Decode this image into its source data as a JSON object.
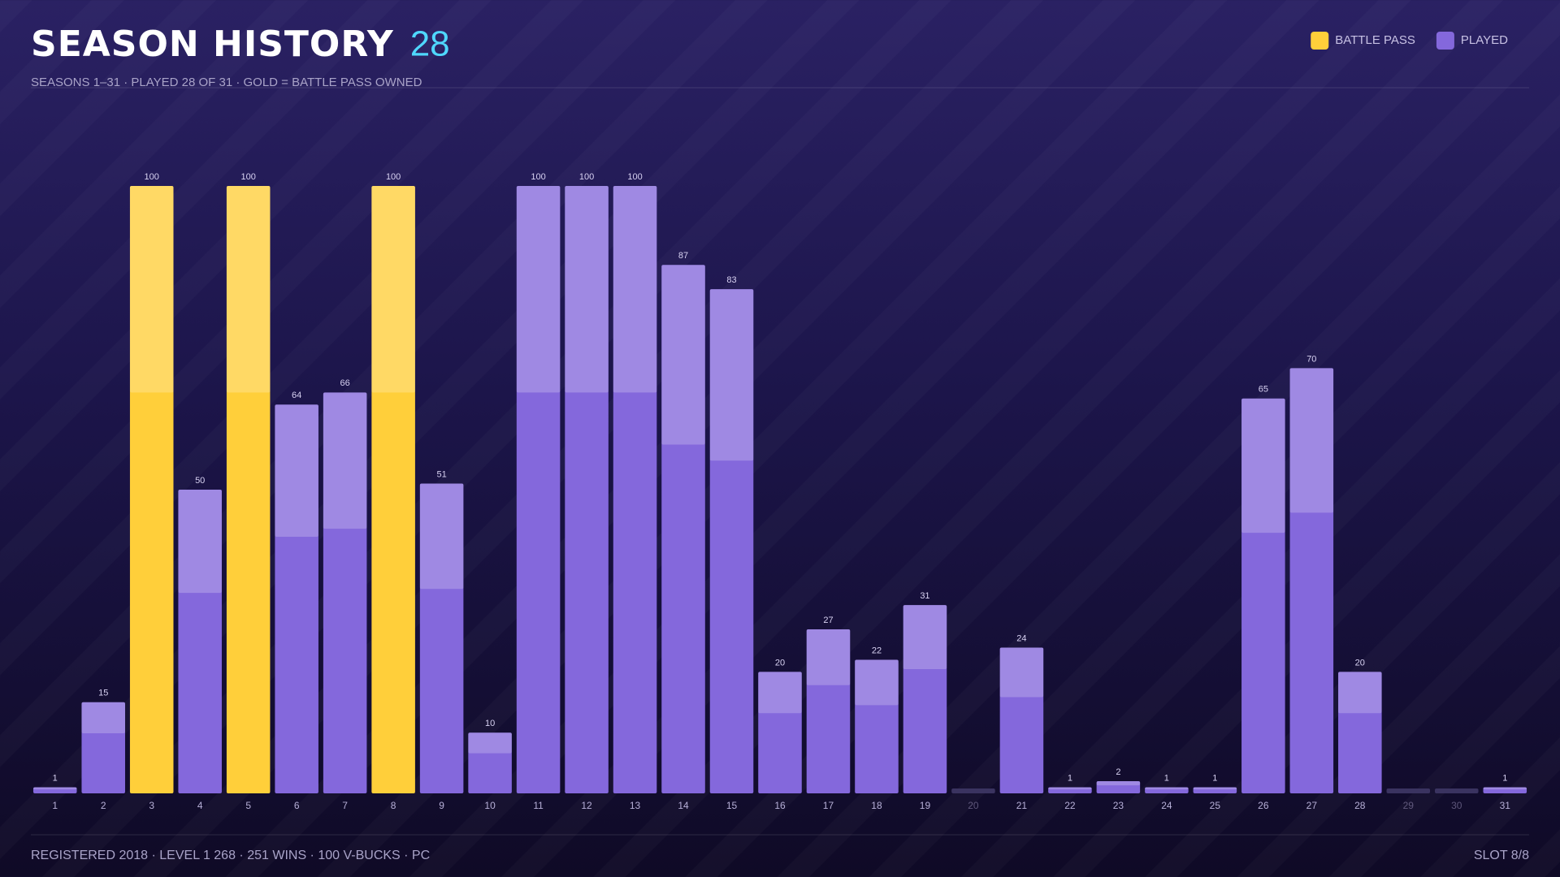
{
  "chart_data": {
    "type": "bar",
    "title": "SEASON HISTORY",
    "count": 28,
    "subtitle": "SEASONS 1–31 · PLAYED 28 OF 31 · GOLD = BATTLE PASS OWNED",
    "categories": [
      "1",
      "2",
      "3",
      "4",
      "5",
      "6",
      "7",
      "8",
      "9",
      "10",
      "11",
      "12",
      "13",
      "14",
      "15",
      "16",
      "17",
      "18",
      "19",
      "20",
      "21",
      "22",
      "23",
      "24",
      "25",
      "26",
      "27",
      "28",
      "29",
      "30",
      "31"
    ],
    "series": [
      {
        "name": "BATTLE PASS",
        "color": "#ffcf3a",
        "values": [
          null,
          null,
          100,
          null,
          100,
          null,
          null,
          100,
          null,
          null,
          null,
          null,
          null,
          null,
          null,
          null,
          null,
          null,
          null,
          null,
          null,
          null,
          null,
          null,
          null,
          null,
          null,
          null,
          null,
          null,
          null
        ]
      },
      {
        "name": "PLAYED",
        "color": "#8468dc",
        "values": [
          1,
          15,
          null,
          50,
          null,
          64,
          66,
          null,
          51,
          10,
          100,
          100,
          100,
          87,
          83,
          20,
          27,
          22,
          31,
          null,
          24,
          1,
          2,
          1,
          1,
          65,
          70,
          20,
          null,
          null,
          1
        ]
      }
    ],
    "ylim": [
      0,
      100
    ],
    "footer": "REGISTERED 2018 · LEVEL 1 268 · 251 WINS · 100 V-BUCKS · PC",
    "slot": "SLOT 8/8"
  }
}
